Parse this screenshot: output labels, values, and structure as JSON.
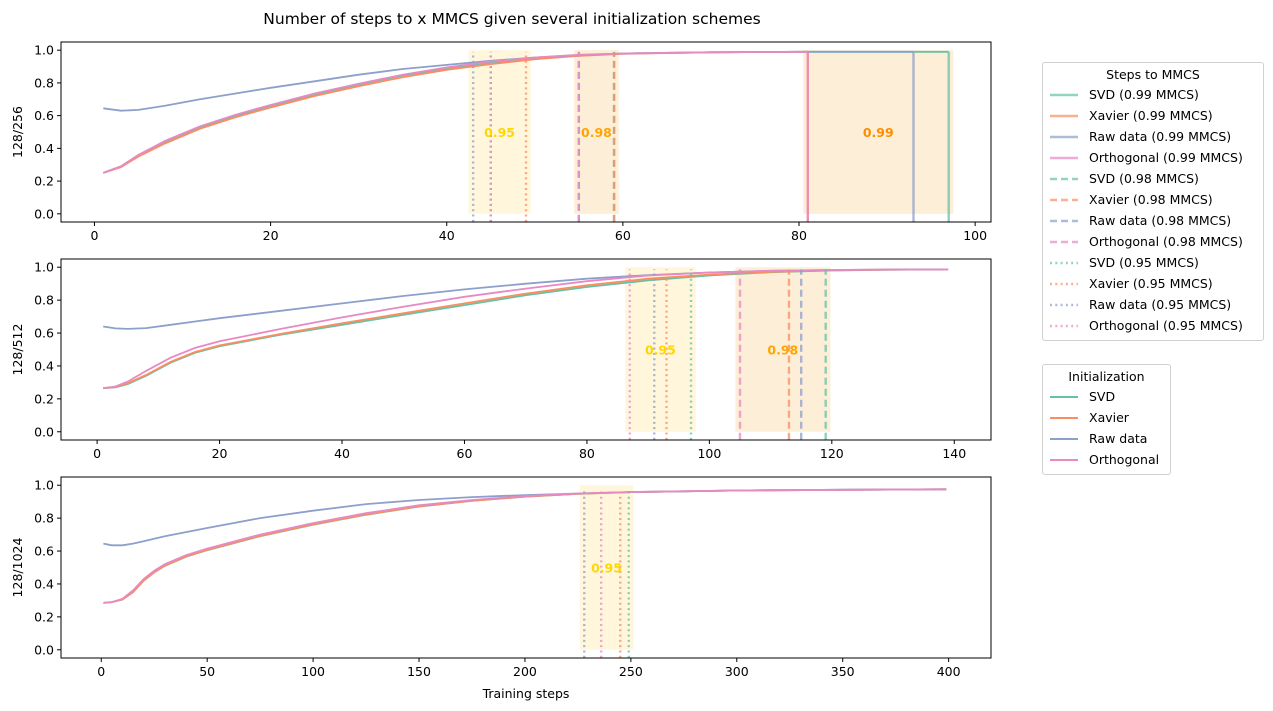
{
  "chart_data": {
    "type": "line",
    "title": "Number of steps to x MMCS given several initialization schemes",
    "xlabel": "Training steps",
    "colors": {
      "SVD": "#66c2a5",
      "Xavier": "#fc8d62",
      "Raw data": "#8da0cb",
      "Orthogonal": "#e78ac3",
      "band_095": "#fff5d6",
      "band_098": "#fdebd0",
      "band_099": "#fdebd0",
      "label_095": "#ffd700",
      "label_098": "#ffa500",
      "label_099": "#ff8c00"
    },
    "panels": [
      {
        "ylabel": "128/256",
        "xlim": [
          -3.8,
          101.8
        ],
        "ylim": [
          -0.05,
          1.05
        ],
        "xticks": [
          0,
          20,
          40,
          60,
          80,
          100
        ],
        "yticks": [
          0.0,
          0.2,
          0.4,
          0.6,
          0.8,
          1.0
        ],
        "series": [
          {
            "name": "SVD",
            "x": [
              1,
              3,
              5,
              8,
              12,
              16,
              20,
              25,
              30,
              35,
              40,
              45,
              50,
              55,
              60,
              70,
              80,
              90,
              97
            ],
            "y": [
              0.25,
              0.29,
              0.36,
              0.44,
              0.53,
              0.6,
              0.66,
              0.73,
              0.79,
              0.845,
              0.89,
              0.925,
              0.95,
              0.97,
              0.98,
              0.987,
              0.99,
              0.99,
              0.99
            ]
          },
          {
            "name": "Xavier",
            "x": [
              1,
              3,
              5,
              8,
              12,
              16,
              20,
              25,
              30,
              35,
              40,
              45,
              50,
              55,
              60,
              70,
              81
            ],
            "y": [
              0.25,
              0.285,
              0.35,
              0.43,
              0.52,
              0.59,
              0.65,
              0.72,
              0.78,
              0.835,
              0.88,
              0.915,
              0.945,
              0.965,
              0.978,
              0.987,
              0.99
            ]
          },
          {
            "name": "Raw data",
            "x": [
              1,
              3,
              5,
              8,
              12,
              16,
              20,
              25,
              30,
              35,
              40,
              45,
              50,
              55,
              60,
              70,
              80,
              93
            ],
            "y": [
              0.645,
              0.63,
              0.635,
              0.66,
              0.7,
              0.735,
              0.77,
              0.81,
              0.85,
              0.885,
              0.91,
              0.935,
              0.955,
              0.97,
              0.98,
              0.987,
              0.99,
              0.99
            ]
          },
          {
            "name": "Orthogonal",
            "x": [
              1,
              3,
              5,
              8,
              12,
              16,
              20,
              25,
              30,
              35,
              40,
              45,
              50,
              55,
              60,
              70,
              81
            ],
            "y": [
              0.25,
              0.29,
              0.36,
              0.445,
              0.535,
              0.605,
              0.665,
              0.735,
              0.795,
              0.85,
              0.895,
              0.93,
              0.955,
              0.972,
              0.98,
              0.987,
              0.99
            ]
          }
        ],
        "thresholds": [
          {
            "label": "0.95",
            "style": "dotted",
            "steps": {
              "SVD": 45,
              "Xavier": 49,
              "Raw data": 43,
              "Orthogonal": 45
            }
          },
          {
            "label": "0.98",
            "style": "dashed",
            "steps": {
              "SVD": 59,
              "Xavier": 59,
              "Raw data": 55,
              "Orthogonal": 55
            }
          },
          {
            "label": "0.99",
            "style": "solid",
            "steps": {
              "SVD": 97,
              "Xavier": 81,
              "Raw data": 93,
              "Orthogonal": 81
            }
          }
        ]
      },
      {
        "ylabel": "128/512",
        "xlim": [
          -5.9,
          146
        ],
        "ylim": [
          -0.05,
          1.05
        ],
        "xticks": [
          0,
          20,
          40,
          60,
          80,
          100,
          120,
          140
        ],
        "yticks": [
          0.0,
          0.2,
          0.4,
          0.6,
          0.8,
          1.0
        ],
        "series": [
          {
            "name": "SVD",
            "x": [
              1,
              3,
              5,
              8,
              12,
              16,
              20,
              30,
              40,
              50,
              60,
              70,
              80,
              90,
              100,
              110,
              120,
              130,
              139
            ],
            "y": [
              0.265,
              0.27,
              0.29,
              0.34,
              0.42,
              0.48,
              0.52,
              0.59,
              0.65,
              0.71,
              0.77,
              0.83,
              0.88,
              0.92,
              0.95,
              0.97,
              0.98,
              0.985,
              0.987
            ]
          },
          {
            "name": "Xavier",
            "x": [
              1,
              3,
              5,
              8,
              12,
              16,
              20,
              30,
              40,
              50,
              60,
              70,
              80,
              90,
              100,
              110,
              120,
              130,
              139
            ],
            "y": [
              0.265,
              0.272,
              0.295,
              0.345,
              0.425,
              0.485,
              0.525,
              0.595,
              0.66,
              0.72,
              0.78,
              0.84,
              0.89,
              0.93,
              0.955,
              0.972,
              0.981,
              0.985,
              0.987
            ]
          },
          {
            "name": "Raw data",
            "x": [
              1,
              3,
              5,
              8,
              12,
              16,
              20,
              30,
              40,
              50,
              60,
              70,
              80,
              90,
              100,
              110,
              120,
              130,
              139
            ],
            "y": [
              0.64,
              0.628,
              0.625,
              0.63,
              0.65,
              0.67,
              0.69,
              0.735,
              0.78,
              0.825,
              0.865,
              0.9,
              0.93,
              0.952,
              0.968,
              0.978,
              0.983,
              0.986,
              0.987
            ]
          },
          {
            "name": "Orthogonal",
            "x": [
              1,
              3,
              5,
              8,
              12,
              16,
              20,
              30,
              40,
              50,
              60,
              70,
              80,
              90,
              100,
              110,
              120,
              130,
              139
            ],
            "y": [
              0.265,
              0.275,
              0.305,
              0.37,
              0.45,
              0.51,
              0.55,
              0.625,
              0.695,
              0.76,
              0.82,
              0.87,
              0.915,
              0.95,
              0.968,
              0.978,
              0.983,
              0.986,
              0.987
            ]
          }
        ],
        "thresholds": [
          {
            "label": "0.95",
            "style": "dotted",
            "steps": {
              "SVD": 97,
              "Xavier": 93,
              "Raw data": 91,
              "Orthogonal": 87
            }
          },
          {
            "label": "0.98",
            "style": "dashed",
            "steps": {
              "SVD": 119,
              "Xavier": 113,
              "Raw data": 115,
              "Orthogonal": 105
            }
          }
        ]
      },
      {
        "ylabel": "128/1024",
        "xlim": [
          -19,
          420
        ],
        "ylim": [
          -0.05,
          1.05
        ],
        "xticks": [
          0,
          50,
          100,
          150,
          200,
          250,
          300,
          350,
          400
        ],
        "yticks": [
          0.0,
          0.2,
          0.4,
          0.6,
          0.8,
          1.0
        ],
        "series": [
          {
            "name": "SVD",
            "x": [
              1,
              5,
              10,
              15,
              20,
              25,
              30,
              40,
              50,
              75,
              100,
              125,
              150,
              175,
              200,
              225,
              250,
              300,
              350,
              399
            ],
            "y": [
              0.285,
              0.29,
              0.305,
              0.35,
              0.42,
              0.47,
              0.51,
              0.565,
              0.605,
              0.69,
              0.76,
              0.82,
              0.87,
              0.905,
              0.93,
              0.948,
              0.958,
              0.968,
              0.972,
              0.975
            ]
          },
          {
            "name": "Xavier",
            "x": [
              1,
              5,
              10,
              15,
              20,
              25,
              30,
              40,
              50,
              75,
              100,
              125,
              150,
              175,
              200,
              225,
              250,
              300,
              350,
              399
            ],
            "y": [
              0.285,
              0.29,
              0.305,
              0.35,
              0.42,
              0.47,
              0.512,
              0.567,
              0.607,
              0.692,
              0.762,
              0.822,
              0.872,
              0.906,
              0.931,
              0.948,
              0.958,
              0.968,
              0.972,
              0.975
            ]
          },
          {
            "name": "Raw data",
            "x": [
              1,
              5,
              10,
              15,
              20,
              30,
              40,
              50,
              75,
              100,
              125,
              150,
              175,
              200,
              225,
              250,
              300,
              350,
              399
            ],
            "y": [
              0.645,
              0.635,
              0.635,
              0.645,
              0.66,
              0.69,
              0.715,
              0.74,
              0.8,
              0.845,
              0.885,
              0.91,
              0.928,
              0.94,
              0.95,
              0.958,
              0.968,
              0.972,
              0.975
            ]
          },
          {
            "name": "Orthogonal",
            "x": [
              1,
              5,
              10,
              15,
              20,
              25,
              30,
              40,
              50,
              75,
              100,
              125,
              150,
              175,
              200,
              225,
              250,
              300,
              350,
              399
            ],
            "y": [
              0.285,
              0.29,
              0.31,
              0.36,
              0.43,
              0.48,
              0.52,
              0.575,
              0.615,
              0.7,
              0.77,
              0.83,
              0.878,
              0.91,
              0.934,
              0.95,
              0.959,
              0.968,
              0.972,
              0.975
            ]
          }
        ],
        "thresholds": [
          {
            "label": "0.95",
            "style": "dotted",
            "steps": {
              "SVD": 249,
              "Xavier": 245,
              "Raw data": 228,
              "Orthogonal": 236
            }
          }
        ]
      }
    ],
    "legend_steps": {
      "title": "Steps to MMCS",
      "placement": "right",
      "entries": [
        {
          "label": "SVD (0.99 MMCS)",
          "series": "SVD",
          "style": "solid"
        },
        {
          "label": "Xavier (0.99 MMCS)",
          "series": "Xavier",
          "style": "solid"
        },
        {
          "label": "Raw data (0.99 MMCS)",
          "series": "Raw data",
          "style": "solid"
        },
        {
          "label": "Orthogonal (0.99 MMCS)",
          "series": "Orthogonal",
          "style": "solid"
        },
        {
          "label": "SVD (0.98 MMCS)",
          "series": "SVD",
          "style": "dashed"
        },
        {
          "label": "Xavier (0.98 MMCS)",
          "series": "Xavier",
          "style": "dashed"
        },
        {
          "label": "Raw data (0.98 MMCS)",
          "series": "Raw data",
          "style": "dashed"
        },
        {
          "label": "Orthogonal (0.98 MMCS)",
          "series": "Orthogonal",
          "style": "dashed"
        },
        {
          "label": "SVD (0.95 MMCS)",
          "series": "SVD",
          "style": "dotted"
        },
        {
          "label": "Xavier (0.95 MMCS)",
          "series": "Xavier",
          "style": "dotted"
        },
        {
          "label": "Raw data (0.95 MMCS)",
          "series": "Raw data",
          "style": "dotted"
        },
        {
          "label": "Orthogonal (0.95 MMCS)",
          "series": "Orthogonal",
          "style": "dotted"
        }
      ]
    },
    "legend_init": {
      "title": "Initialization",
      "placement": "right",
      "entries": [
        {
          "label": "SVD",
          "series": "SVD"
        },
        {
          "label": "Xavier",
          "series": "Xavier"
        },
        {
          "label": "Raw data",
          "series": "Raw data"
        },
        {
          "label": "Orthogonal",
          "series": "Orthogonal"
        }
      ]
    }
  }
}
